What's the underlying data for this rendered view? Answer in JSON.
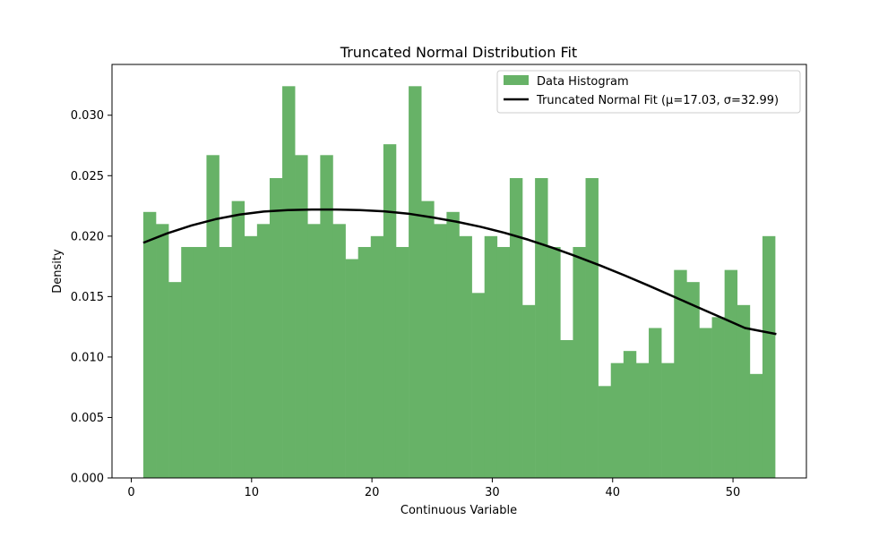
{
  "chart_data": {
    "type": "bar",
    "title": "Truncated Normal Distribution Fit",
    "xlabel": "Continuous Variable",
    "ylabel": "Density",
    "xlim": [
      -1.6,
      56.1
    ],
    "ylim": [
      0,
      0.0342
    ],
    "xticks": [
      0,
      10,
      20,
      30,
      40,
      50
    ],
    "yticks": [
      0.0,
      0.005,
      0.01,
      0.015,
      0.02,
      0.025,
      0.03
    ],
    "xtick_labels": [
      "0",
      "10",
      "20",
      "30",
      "40",
      "50"
    ],
    "ytick_labels": [
      "0.000",
      "0.005",
      "0.010",
      "0.015",
      "0.020",
      "0.025",
      "0.030"
    ],
    "grid": false,
    "legend_position": "top-right",
    "histogram": {
      "name": "Data Histogram",
      "color": "#67b267",
      "bin_start": 1.0,
      "bin_width": 1.05,
      "values": [
        0.022,
        0.021,
        0.0162,
        0.0191,
        0.0191,
        0.0267,
        0.0191,
        0.0229,
        0.02,
        0.021,
        0.0248,
        0.0324,
        0.0267,
        0.021,
        0.0267,
        0.021,
        0.0181,
        0.0191,
        0.02,
        0.0276,
        0.0191,
        0.0324,
        0.0229,
        0.021,
        0.022,
        0.02,
        0.0153,
        0.02,
        0.0191,
        0.0248,
        0.0143,
        0.0248,
        0.0191,
        0.0114,
        0.0191,
        0.0248,
        0.0076,
        0.0095,
        0.0105,
        0.0095,
        0.0124,
        0.0095,
        0.0172,
        0.0162,
        0.0124,
        0.0133,
        0.0172,
        0.0143,
        0.0086,
        0.02
      ]
    },
    "fit_curve": {
      "name": "Truncated Normal Fit (μ=17.03, σ=32.99)",
      "color": "#000000",
      "mu": 17.03,
      "sigma": 32.99,
      "x": [
        1.0,
        3.0,
        5.0,
        7.0,
        9.0,
        11.0,
        13.0,
        15.0,
        17.0,
        19.0,
        21.0,
        23.0,
        25.0,
        27.0,
        29.0,
        31.0,
        33.0,
        35.0,
        37.0,
        39.0,
        41.0,
        43.0,
        45.0,
        47.0,
        49.0,
        51.0,
        53.6
      ],
      "y": [
        0.01945,
        0.02023,
        0.02088,
        0.0214,
        0.02178,
        0.02203,
        0.02215,
        0.0222,
        0.0222,
        0.02215,
        0.02205,
        0.02186,
        0.02155,
        0.0212,
        0.02078,
        0.02028,
        0.0197,
        0.01904,
        0.01832,
        0.01756,
        0.01675,
        0.0159,
        0.01503,
        0.01415,
        0.01328,
        0.0124,
        0.0119
      ]
    }
  }
}
